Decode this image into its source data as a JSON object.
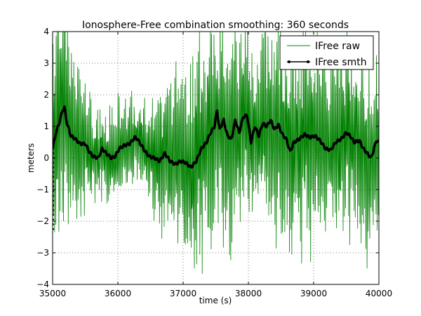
{
  "chart_data": {
    "type": "line",
    "title": "Ionosphere-Free combination smoothing: 360 seconds",
    "xlabel": "time (s)",
    "ylabel": "meters",
    "xlim": [
      35000,
      40000
    ],
    "ylim": [
      -4,
      4
    ],
    "x_ticks": [
      35000,
      36000,
      37000,
      38000,
      39000,
      40000
    ],
    "y_ticks": [
      -4,
      -3,
      -2,
      -1,
      0,
      1,
      2,
      3,
      4
    ],
    "x_tick_labels": [
      "35000",
      "36000",
      "37000",
      "38000",
      "39000",
      "40000"
    ],
    "y_tick_labels": [
      "−4",
      "−3",
      "−2",
      "−1",
      "0",
      "1",
      "2",
      "3",
      "4"
    ],
    "grid": true,
    "legend_position": "top-right",
    "series": [
      {
        "name": "IFree raw",
        "color": "#008000",
        "style": "line",
        "envelope_x": [
          35000,
          35100,
          35200,
          35400,
          35600,
          35800,
          36000,
          36200,
          36400,
          36600,
          36800,
          37000,
          37200,
          37400,
          37600,
          37800,
          38000,
          38200,
          38400,
          38600,
          38800,
          39000,
          39200,
          39400,
          39600,
          39800,
          40000
        ],
        "envelope_amplitude": [
          3.8,
          4.0,
          3.6,
          2.8,
          1.6,
          1.4,
          1.6,
          1.5,
          1.6,
          2.0,
          2.8,
          3.2,
          3.6,
          3.8,
          3.8,
          3.6,
          3.2,
          3.0,
          3.4,
          3.8,
          3.6,
          3.4,
          3.2,
          3.0,
          3.4,
          3.6,
          3.2
        ]
      },
      {
        "name": "IFree smth",
        "color": "#000000",
        "style": "line-marker",
        "x": [
          35000,
          35050,
          35100,
          35150,
          35180,
          35220,
          35280,
          35350,
          35420,
          35500,
          35560,
          35620,
          35700,
          35760,
          35820,
          35900,
          35960,
          36020,
          36100,
          36180,
          36260,
          36300,
          36360,
          36420,
          36480,
          36560,
          36640,
          36720,
          36800,
          36880,
          36960,
          37040,
          37120,
          37200,
          37280,
          37360,
          37420,
          37480,
          37520,
          37560,
          37620,
          37680,
          37740,
          37800,
          37860,
          37920,
          37980,
          38040,
          38100,
          38160,
          38220,
          38280,
          38340,
          38400,
          38460,
          38520,
          38580,
          38640,
          38700,
          38780,
          38860,
          38940,
          39020,
          39100,
          39180,
          39260,
          39340,
          39420,
          39500,
          39560,
          39620,
          39700,
          39760,
          39820,
          39880,
          39920,
          39960,
          40000
        ],
        "y": [
          0.3,
          0.8,
          1.1,
          1.5,
          1.6,
          1.1,
          0.7,
          0.6,
          0.45,
          0.45,
          0.2,
          0.05,
          0.0,
          0.3,
          0.15,
          0.0,
          0.05,
          0.3,
          0.4,
          0.45,
          0.65,
          0.6,
          0.4,
          0.2,
          0.05,
          0.0,
          -0.1,
          0.15,
          -0.1,
          -0.2,
          -0.1,
          -0.15,
          -0.3,
          -0.1,
          0.3,
          0.5,
          0.8,
          1.0,
          1.5,
          0.9,
          1.2,
          0.7,
          0.6,
          1.2,
          0.8,
          1.3,
          1.35,
          0.5,
          1.0,
          0.7,
          1.1,
          1.0,
          1.2,
          0.9,
          1.05,
          0.75,
          0.6,
          0.2,
          0.5,
          0.6,
          0.75,
          0.65,
          0.7,
          0.55,
          0.3,
          0.25,
          0.5,
          0.6,
          0.8,
          0.7,
          0.5,
          0.55,
          0.3,
          0.15,
          0.0,
          0.25,
          0.55,
          0.5
        ]
      }
    ]
  }
}
